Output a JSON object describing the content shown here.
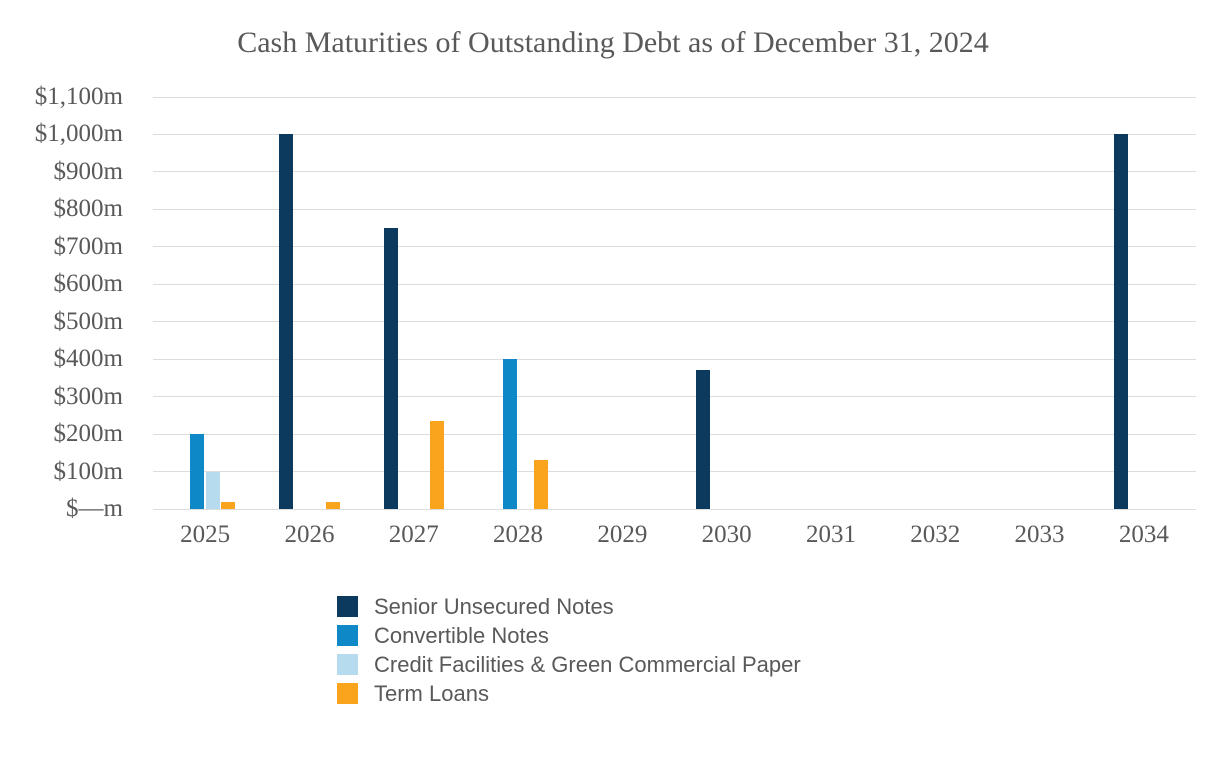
{
  "title": "Cash Maturities of Outstanding Debt as of December 31, 2024",
  "colors": {
    "senior_unsecured_notes": "#0C3A5E",
    "convertible_notes": "#0E88C6",
    "credit_facilities_green_cp": "#B7DBEE",
    "term_loans": "#FAA41D",
    "gridline": "#DCDCDC",
    "text": "#595959",
    "background": "#FFFFFF"
  },
  "chart_data": {
    "type": "bar",
    "title": "Cash Maturities of Outstanding Debt as of December 31, 2024",
    "xlabel": "",
    "ylabel": "",
    "units": "millions USD",
    "ylim": [
      0,
      1100
    ],
    "grid": true,
    "legend_position": "bottom-left",
    "categories": [
      "2025",
      "2026",
      "2027",
      "2028",
      "2029",
      "2030",
      "2031",
      "2032",
      "2033",
      "2034"
    ],
    "y_tick_labels": [
      "$1,100m",
      "$1,000m",
      "$900m",
      "$800m",
      "$700m",
      "$600m",
      "$500m",
      "$400m",
      "$300m",
      "$200m",
      "$100m",
      "$—m"
    ],
    "y_tick_values": [
      1100,
      1000,
      900,
      800,
      700,
      600,
      500,
      400,
      300,
      200,
      100,
      0
    ],
    "series": [
      {
        "name": "Senior Unsecured Notes",
        "color": "#0C3A5E",
        "values": [
          0,
          1000,
          750,
          0,
          0,
          370,
          0,
          0,
          0,
          1000
        ]
      },
      {
        "name": "Convertible Notes",
        "color": "#0E88C6",
        "values": [
          200,
          0,
          0,
          400,
          0,
          0,
          0,
          0,
          0,
          0
        ]
      },
      {
        "name": "Credit Facilities & Green Commercial Paper",
        "color": "#B7DBEE",
        "values": [
          100,
          0,
          0,
          0,
          0,
          0,
          0,
          0,
          0,
          0
        ]
      },
      {
        "name": "Term Loans",
        "color": "#FAA41D",
        "values": [
          20,
          20,
          235,
          130,
          0,
          0,
          0,
          0,
          0,
          0
        ]
      }
    ]
  }
}
